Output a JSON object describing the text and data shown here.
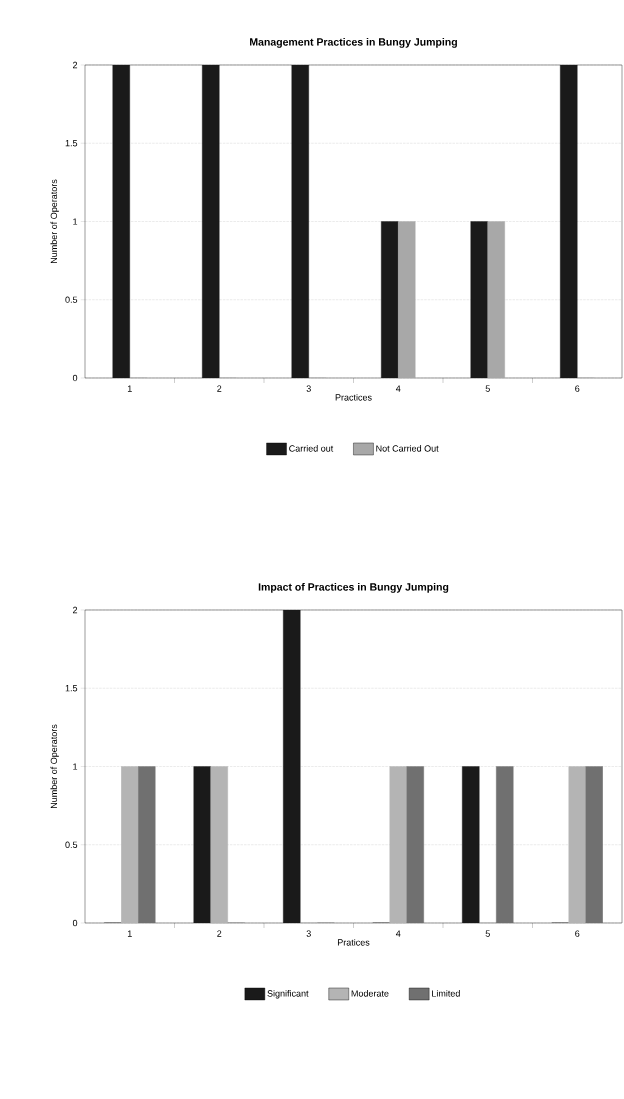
{
  "chart_data": [
    {
      "type": "bar",
      "title": "Management Practices in Bungy Jumping",
      "xlabel": "Practices",
      "ylabel": "Number of Operators",
      "categories": [
        "1",
        "2",
        "3",
        "4",
        "5",
        "6"
      ],
      "series": [
        {
          "name": "Carried out",
          "color": "#1a1a1a",
          "values": [
            2,
            2,
            2,
            1,
            1,
            2
          ]
        },
        {
          "name": "Not Carried Out",
          "color": "#a8a8a8",
          "values": [
            0,
            0,
            0,
            1,
            1,
            0
          ]
        }
      ],
      "ylim": [
        0,
        2
      ],
      "yticks": [
        0,
        0.5,
        1,
        1.5,
        2
      ],
      "grid": "y",
      "legend": "bottom"
    },
    {
      "type": "bar",
      "title": "Impact of Practices in Bungy Jumping",
      "xlabel": "Pratices",
      "ylabel": "Number of Operators",
      "categories": [
        "1",
        "2",
        "3",
        "4",
        "5",
        "6"
      ],
      "series": [
        {
          "name": "Significant",
          "color": "#1a1a1a",
          "values": [
            0,
            1,
            2,
            0,
            1,
            0
          ]
        },
        {
          "name": "Moderate",
          "color": "#b4b4b4",
          "values": [
            1,
            1,
            0,
            1,
            0,
            1
          ]
        },
        {
          "name": "Limited",
          "color": "#707070",
          "values": [
            1,
            0,
            0,
            1,
            1,
            1
          ]
        }
      ],
      "ylim": [
        0,
        2
      ],
      "yticks": [
        0,
        0.5,
        1,
        1.5,
        2
      ],
      "grid": "y",
      "legend": "bottom"
    }
  ]
}
